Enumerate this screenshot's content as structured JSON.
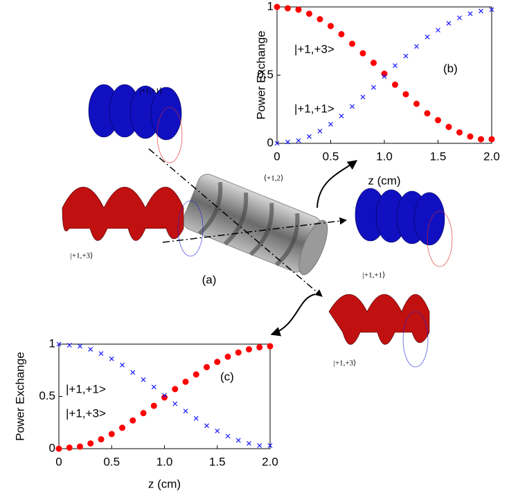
{
  "chart_data": [
    {
      "type": "line",
      "xlabel": "z (cm)",
      "ylabel": "Power Exchange",
      "x": [
        0,
        0.1,
        0.2,
        0.3,
        0.4,
        0.5,
        0.6,
        0.7,
        0.8,
        0.9,
        1.0,
        1.1,
        1.2,
        1.3,
        1.4,
        1.5,
        1.6,
        1.7,
        1.8,
        1.9,
        2.0
      ],
      "series": [
        {
          "color": "#ff0000",
          "marker": "circle",
          "values": [
            1.0,
            0.99,
            0.98,
            0.95,
            0.91,
            0.86,
            0.8,
            0.73,
            0.66,
            0.59,
            0.51,
            0.43,
            0.36,
            0.29,
            0.22,
            0.17,
            0.12,
            0.08,
            0.05,
            0.03,
            0.03
          ]
        },
        {
          "color": "#1a1aff",
          "marker": "x",
          "values": [
            0.0,
            0.01,
            0.02,
            0.05,
            0.09,
            0.14,
            0.2,
            0.27,
            0.34,
            0.41,
            0.49,
            0.57,
            0.64,
            0.71,
            0.78,
            0.83,
            0.88,
            0.92,
            0.95,
            0.97,
            0.98
          ]
        }
      ],
      "annotations": [
        "|+1,+3>",
        "|+1,+1>",
        "(b)"
      ],
      "xlim": [
        0,
        2
      ],
      "xticks": [
        0,
        0.5,
        {
          "value": 1,
          "label": "1.0"
        },
        1.5,
        {
          "value": 2,
          "label": "2.0"
        }
      ],
      "ylim": [
        0,
        1
      ],
      "yticks": [
        0,
        0.5,
        1
      ]
    },
    {
      "type": "line",
      "xlabel": "z (cm)",
      "ylabel": "Power Exchange",
      "x": [
        0,
        0.1,
        0.2,
        0.3,
        0.4,
        0.5,
        0.6,
        0.7,
        0.8,
        0.9,
        1.0,
        1.1,
        1.2,
        1.3,
        1.4,
        1.5,
        1.6,
        1.7,
        1.8,
        1.9,
        2.0
      ],
      "series": [
        {
          "color": "#ff0000",
          "marker": "circle",
          "values": [
            0.0,
            0.01,
            0.02,
            0.05,
            0.09,
            0.14,
            0.2,
            0.27,
            0.34,
            0.41,
            0.49,
            0.57,
            0.64,
            0.71,
            0.78,
            0.83,
            0.88,
            0.92,
            0.95,
            0.97,
            0.98
          ]
        },
        {
          "color": "#1a1aff",
          "marker": "x",
          "values": [
            1.0,
            0.99,
            0.98,
            0.95,
            0.91,
            0.86,
            0.8,
            0.73,
            0.66,
            0.59,
            0.51,
            0.43,
            0.36,
            0.29,
            0.22,
            0.17,
            0.12,
            0.08,
            0.05,
            0.03,
            0.03
          ]
        }
      ],
      "annotations": [
        "|+1,+1>",
        "|+1,+3>",
        "(c)"
      ],
      "xlim": [
        0,
        2
      ],
      "xticks": [
        0,
        0.5,
        {
          "value": 1,
          "label": "1.0"
        },
        1.5,
        {
          "value": 2,
          "label": "2.0"
        }
      ],
      "ylim": [
        0,
        1
      ],
      "yticks": [
        0,
        0.5,
        1
      ]
    }
  ],
  "diagram": {
    "caption": "(a)",
    "labels": [
      "|+1,+1⟩",
      "⟨+1,2⟩",
      "|+1,+3⟩",
      "|+1,+1⟩",
      "|+1,+3⟩"
    ]
  }
}
